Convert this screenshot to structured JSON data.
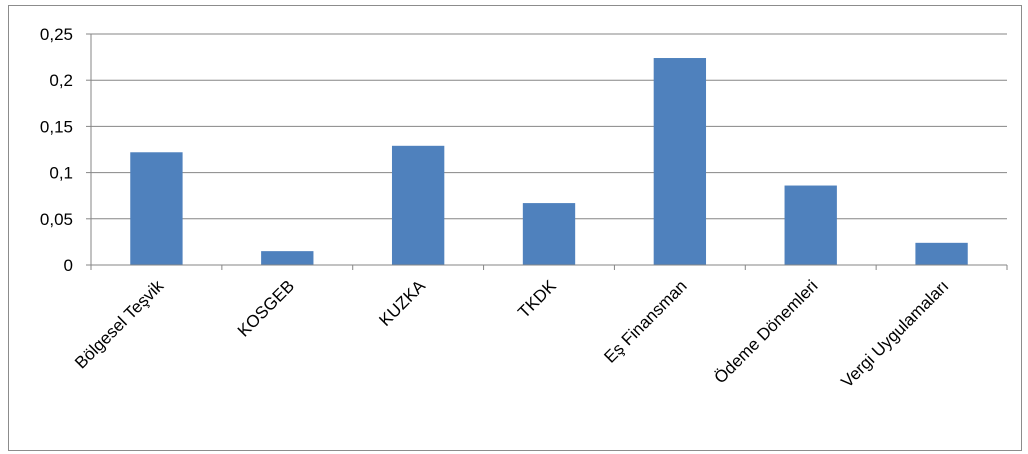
{
  "chart_data": {
    "type": "bar",
    "categories": [
      "Bölgesel Teşvik",
      "KOSGEB",
      "KUZKA",
      "TKDK",
      "Eş Finansman",
      "Ödeme Dönemleri",
      "Vergi Uygulamaları"
    ],
    "series": [
      {
        "values": [
          0.122,
          0.015,
          0.129,
          0.067,
          0.224,
          0.086,
          0.024
        ]
      }
    ],
    "y_ticks": [
      "0",
      "0,05",
      "0,1",
      "0,15",
      "0,2",
      "0,25"
    ],
    "ylim": [
      0,
      0.25
    ],
    "grid": true,
    "legend": "none",
    "colors": {
      "bar": "#4f81bd",
      "grid": "#868686",
      "frame": "#8c8c8c"
    }
  }
}
